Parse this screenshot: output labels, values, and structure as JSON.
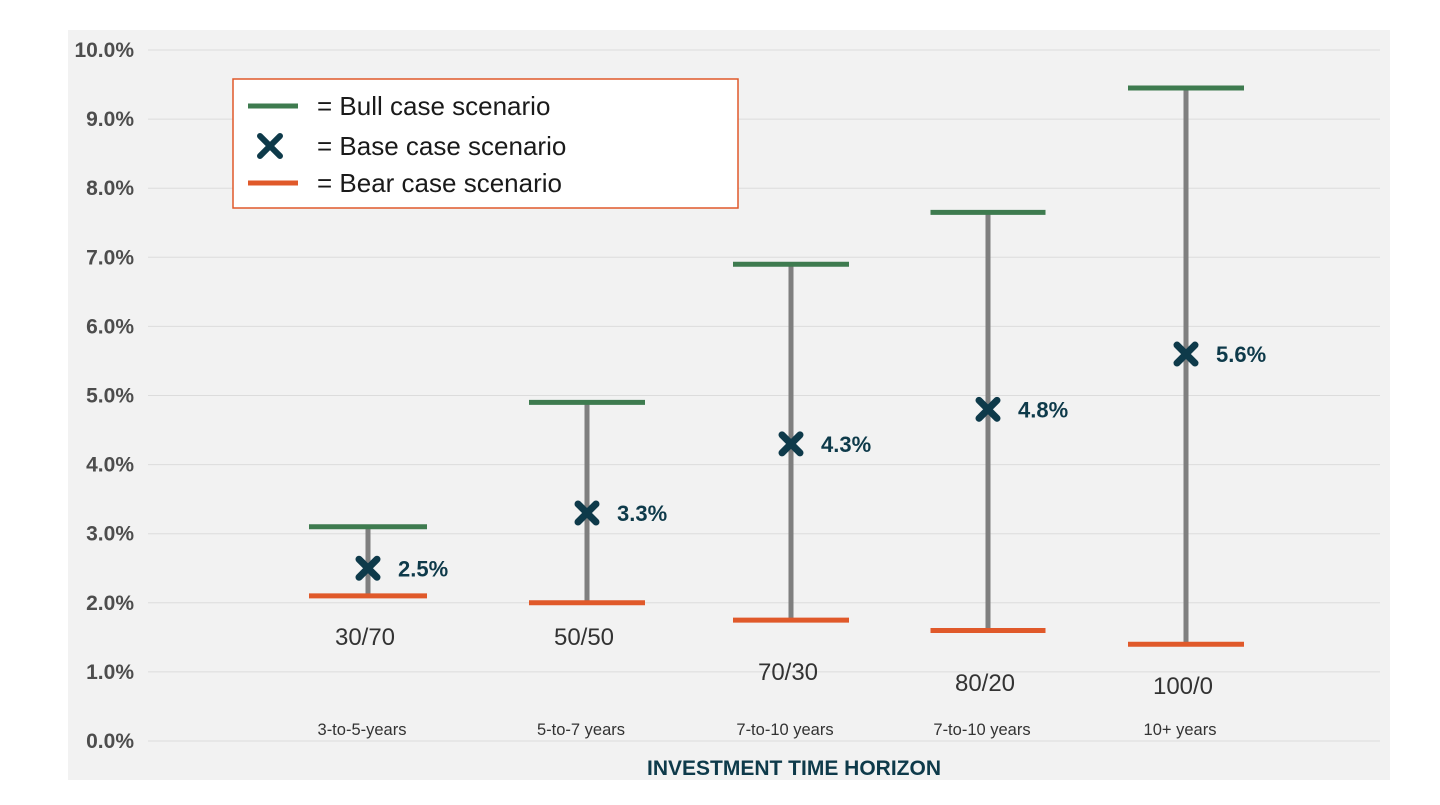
{
  "chart_data": {
    "type": "range",
    "xlabel": "INVESTMENT TIME HORIZON",
    "ylabel": "",
    "ylim": [
      0,
      10
    ],
    "yticks": [
      "0.0%",
      "1.0%",
      "2.0%",
      "3.0%",
      "4.0%",
      "5.0%",
      "6.0%",
      "7.0%",
      "8.0%",
      "9.0%",
      "10.0%"
    ],
    "grid": true,
    "legend_position": "top-left",
    "legend": [
      {
        "key": "bull",
        "label": "= Bull case scenario"
      },
      {
        "key": "base",
        "label": "= Base case scenario"
      },
      {
        "key": "bear",
        "label": "= Bear case scenario"
      }
    ],
    "categories": [
      {
        "allocation": "30/70",
        "horizon": "3-to-5-years",
        "bull": 3.1,
        "base": 2.5,
        "bear": 2.1,
        "base_label": "2.5%"
      },
      {
        "allocation": "50/50",
        "horizon": "5-to-7 years",
        "bull": 4.9,
        "base": 3.3,
        "bear": 2.0,
        "base_label": "3.3%"
      },
      {
        "allocation": "70/30",
        "horizon": "7-to-10 years",
        "bull": 6.9,
        "base": 4.3,
        "bear": 1.75,
        "base_label": "4.3%"
      },
      {
        "allocation": "80/20",
        "horizon": "7-to-10 years",
        "bull": 7.65,
        "base": 4.8,
        "bear": 1.6,
        "base_label": "4.8%"
      },
      {
        "allocation": "100/0",
        "horizon": "10+ years",
        "bull": 9.45,
        "base": 5.6,
        "bear": 1.4,
        "base_label": "5.6%"
      }
    ],
    "colors": {
      "bull": "#3e7b4f",
      "base": "#0e3a4a",
      "bear": "#e0592a",
      "whisker": "#7f7f7f",
      "grid": "#dcdcdc",
      "plot_bg": "#f2f2f2",
      "legend_border": "#e0592a",
      "tick_text": "#4d4d4d",
      "xlabel": "#0e3a4a"
    }
  }
}
